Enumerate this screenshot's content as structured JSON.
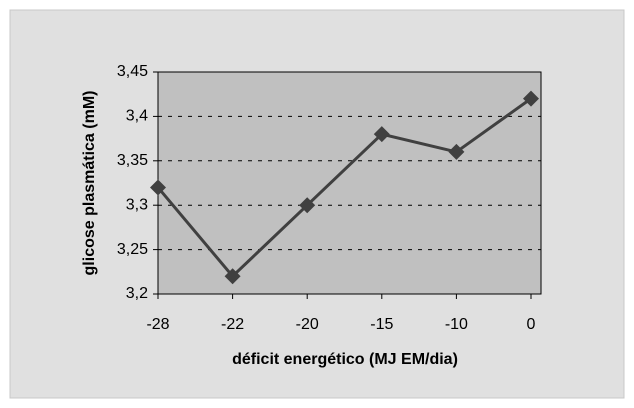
{
  "chart_data": {
    "type": "line",
    "xlabel": "déficit energético  (MJ EM/dia)",
    "ylabel": "glicose plasmática (mM)",
    "categories": [
      -28,
      -22,
      -20,
      -15,
      -10,
      0
    ],
    "series": [
      {
        "name": "glicose",
        "color": "#404040",
        "values": [
          3.32,
          3.22,
          3.3,
          3.38,
          3.36,
          3.42
        ]
      }
    ],
    "ylim": [
      3.2,
      3.45
    ],
    "yticks": [
      {
        "value": 3.2,
        "label": "3,2"
      },
      {
        "value": 3.25,
        "label": "3,25"
      },
      {
        "value": 3.3,
        "label": "3,3"
      },
      {
        "value": 3.35,
        "label": "3,35"
      },
      {
        "value": 3.4,
        "label": "3,4"
      },
      {
        "value": 3.45,
        "label": "3,45"
      }
    ],
    "grid": true
  }
}
